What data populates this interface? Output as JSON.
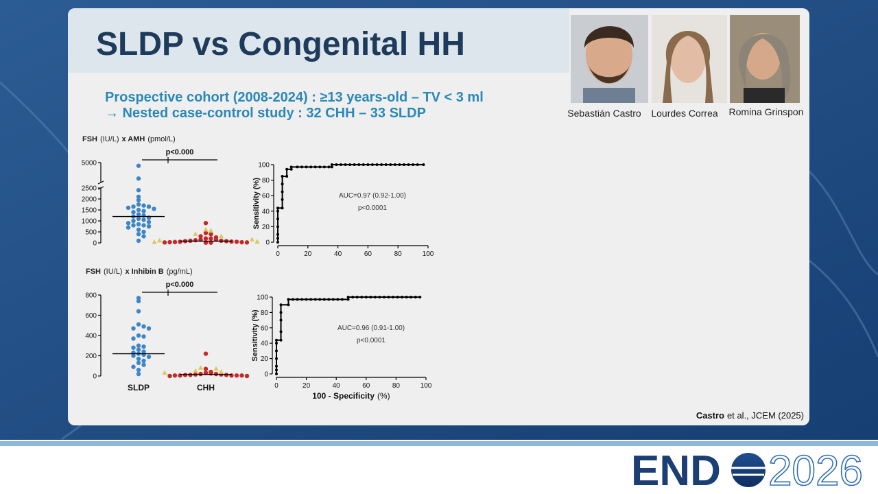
{
  "slide": {
    "title": "SLDP vs Congenital HH",
    "subtitle_lines": [
      "Prospective cohort (2008-2024) : ≥13 years-old – TV < 3 ml",
      "→  Nested case-control study : 32 CHH – 33 SLDP"
    ],
    "authors": [
      "Sebastián Castro",
      "Lourdes Correa",
      "Romina Grinspon"
    ],
    "citation": [
      "Castro",
      "et al., JCEM (2025)"
    ],
    "logo": {
      "brand": "END",
      "year": "2026"
    }
  },
  "chart_data": [
    {
      "type": "dotplot",
      "title_parts": [
        "FSH",
        "(IU/L)",
        "x AMH",
        "(pmol/L)"
      ],
      "categories": [
        null,
        null
      ],
      "series": [
        {
          "color": "#3d85c6",
          "marker": "circle",
          "values": [
            [
              4600,
              3000,
              2400,
              2100,
              1950,
              1750,
              1700,
              1650,
              1650,
              1600,
              1550,
              1500,
              1450,
              1400,
              1300,
              1250,
              1200,
              1150,
              1100,
              1050,
              1000,
              950,
              900,
              850,
              800,
              800,
              750,
              700,
              600,
              500,
              400,
              300,
              100
            ],
            null
          ]
        },
        {
          "color": "#c62828",
          "marker": "circle",
          "values": [
            null,
            [
              900,
              450,
              400,
              300,
              250,
              200,
              200,
              150,
              150,
              120,
              100,
              100,
              80,
              80,
              60,
              50,
              50,
              40,
              30,
              30,
              20,
              20,
              10,
              10
            ]
          ]
        },
        {
          "color": "#d9c85a",
          "marker": "triangle",
          "values": [
            null,
            [
              600,
              550,
              400,
              300,
              150,
              100,
              50,
              30
            ]
          ]
        }
      ],
      "medians": [
        1200,
        80
      ],
      "ylim": [
        0,
        5000
      ],
      "ybreak": 2500,
      "yticks": [
        0,
        500,
        1000,
        1500,
        2000,
        2500,
        5000
      ],
      "annotation": "p<0.000"
    },
    {
      "type": "line",
      "ylabel": "Sensitivity (%)",
      "x": [
        0,
        0,
        0,
        0,
        0,
        0,
        0,
        3,
        3,
        3,
        3,
        3,
        6,
        6,
        9,
        9,
        13,
        16,
        19,
        22,
        25,
        28,
        31,
        34,
        36,
        36,
        39,
        42,
        45,
        48,
        51,
        54,
        57,
        60,
        63,
        66,
        69,
        72,
        75,
        78,
        81,
        84,
        87,
        90,
        93,
        97
      ],
      "series": [
        {
          "color": "#000000",
          "values": [
            0,
            5,
            10,
            20,
            30,
            40,
            44,
            44,
            55,
            65,
            75,
            85,
            85,
            94,
            94,
            97,
            97,
            97,
            97,
            97,
            97,
            97,
            97,
            97,
            97,
            100,
            100,
            100,
            100,
            100,
            100,
            100,
            100,
            100,
            100,
            100,
            100,
            100,
            100,
            100,
            100,
            100,
            100,
            100,
            100,
            100
          ]
        }
      ],
      "xlim": [
        0,
        100
      ],
      "ylim": [
        0,
        100
      ],
      "xticks": [
        0,
        20,
        40,
        60,
        80,
        100
      ],
      "yticks": [
        0,
        20,
        40,
        60,
        80,
        100
      ],
      "annotations": [
        "AUC=0.97 (0.92-1.00)",
        "p<0.0001"
      ]
    },
    {
      "type": "dotplot",
      "title_parts": [
        "FSH",
        "(IU/L)",
        "x Inhibin B",
        "(pg/mL)"
      ],
      "categories": [
        "SLDP",
        "CHH"
      ],
      "series": [
        {
          "color": "#3d85c6",
          "marker": "circle",
          "values": [
            [
              770,
              740,
              640,
              510,
              490,
              470,
              470,
              400,
              390,
              370,
              300,
              290,
              280,
              260,
              240,
              230,
              220,
              210,
              200,
              190,
              170,
              150,
              130,
              110,
              90,
              60,
              20
            ],
            null
          ]
        },
        {
          "color": "#c62828",
          "marker": "circle",
          "values": [
            null,
            [
              220,
              70,
              40,
              30,
              25,
              20,
              20,
              15,
              15,
              10,
              10,
              10,
              5,
              5,
              5,
              5,
              5,
              0,
              0
            ]
          ]
        },
        {
          "color": "#d9c85a",
          "marker": "triangle",
          "values": [
            null,
            [
              80,
              70,
              50,
              40,
              30
            ]
          ]
        }
      ],
      "medians": [
        220,
        15
      ],
      "ylim": [
        0,
        800
      ],
      "yticks": [
        0,
        200,
        400,
        600,
        800
      ],
      "annotation": "p<0.000"
    },
    {
      "type": "line",
      "ylabel": "Sensitivity (%)",
      "xlabel_parts": [
        "100 - Specificity",
        "(%)"
      ],
      "x": [
        0,
        0,
        0,
        0,
        0,
        0,
        0,
        3,
        3,
        3,
        3,
        3,
        8,
        8,
        11,
        14,
        17,
        20,
        23,
        26,
        29,
        32,
        35,
        38,
        41,
        44,
        48,
        48,
        51,
        54,
        57,
        60,
        63,
        66,
        69,
        72,
        75,
        78,
        81,
        84,
        87,
        90,
        93,
        96
      ],
      "series": [
        {
          "color": "#000000",
          "values": [
            0,
            5,
            10,
            20,
            30,
            40,
            44,
            44,
            55,
            70,
            80,
            90,
            90,
            97,
            97,
            97,
            97,
            97,
            97,
            97,
            97,
            97,
            97,
            97,
            97,
            97,
            97,
            100,
            100,
            100,
            100,
            100,
            100,
            100,
            100,
            100,
            100,
            100,
            100,
            100,
            100,
            100,
            100,
            100
          ]
        }
      ],
      "xlim": [
        0,
        100
      ],
      "ylim": [
        0,
        100
      ],
      "xticks": [
        0,
        20,
        40,
        60,
        80,
        100
      ],
      "yticks": [
        0,
        20,
        40,
        60,
        80,
        100
      ],
      "annotations": [
        "AUC=0.96 (0.91-1.00)",
        "p<0.0001"
      ]
    }
  ]
}
